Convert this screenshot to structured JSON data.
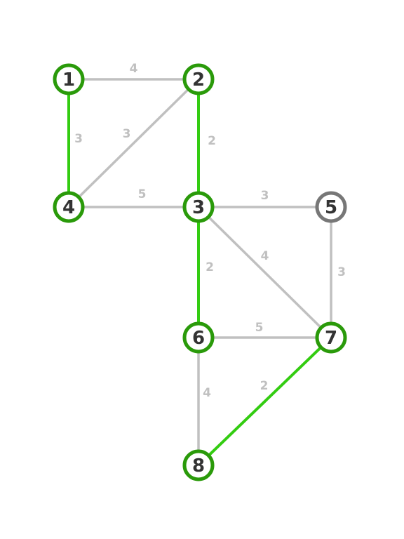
{
  "colors": {
    "background": "#ffffff",
    "edge_default": "#c0c0c0",
    "edge_highlight": "#33cc11",
    "node_ring_active": "#2a9a0a",
    "node_ring_inactive": "#777777",
    "node_fill": "#ffffff",
    "node_text": "#333333",
    "edge_label": "#c0c0c0"
  },
  "nodes": [
    {
      "id": "1",
      "label": "1",
      "active": true
    },
    {
      "id": "2",
      "label": "2",
      "active": true
    },
    {
      "id": "3",
      "label": "3",
      "active": true
    },
    {
      "id": "4",
      "label": "4",
      "active": true
    },
    {
      "id": "5",
      "label": "5",
      "active": false
    },
    {
      "id": "6",
      "label": "6",
      "active": true
    },
    {
      "id": "7",
      "label": "7",
      "active": true
    },
    {
      "id": "8",
      "label": "8",
      "active": true
    }
  ],
  "edges": [
    {
      "from": "1",
      "to": "2",
      "weight": "4",
      "highlighted": false
    },
    {
      "from": "1",
      "to": "4",
      "weight": "3",
      "highlighted": true
    },
    {
      "from": "2",
      "to": "4",
      "weight": "3",
      "highlighted": false
    },
    {
      "from": "2",
      "to": "3",
      "weight": "2",
      "highlighted": true
    },
    {
      "from": "4",
      "to": "3",
      "weight": "5",
      "highlighted": false
    },
    {
      "from": "3",
      "to": "5",
      "weight": "3",
      "highlighted": false
    },
    {
      "from": "3",
      "to": "7",
      "weight": "4",
      "highlighted": false
    },
    {
      "from": "3",
      "to": "6",
      "weight": "2",
      "highlighted": true
    },
    {
      "from": "5",
      "to": "7",
      "weight": "3",
      "highlighted": false
    },
    {
      "from": "6",
      "to": "7",
      "weight": "5",
      "highlighted": false
    },
    {
      "from": "6",
      "to": "8",
      "weight": "4",
      "highlighted": false
    },
    {
      "from": "7",
      "to": "8",
      "weight": "2",
      "highlighted": true
    }
  ]
}
